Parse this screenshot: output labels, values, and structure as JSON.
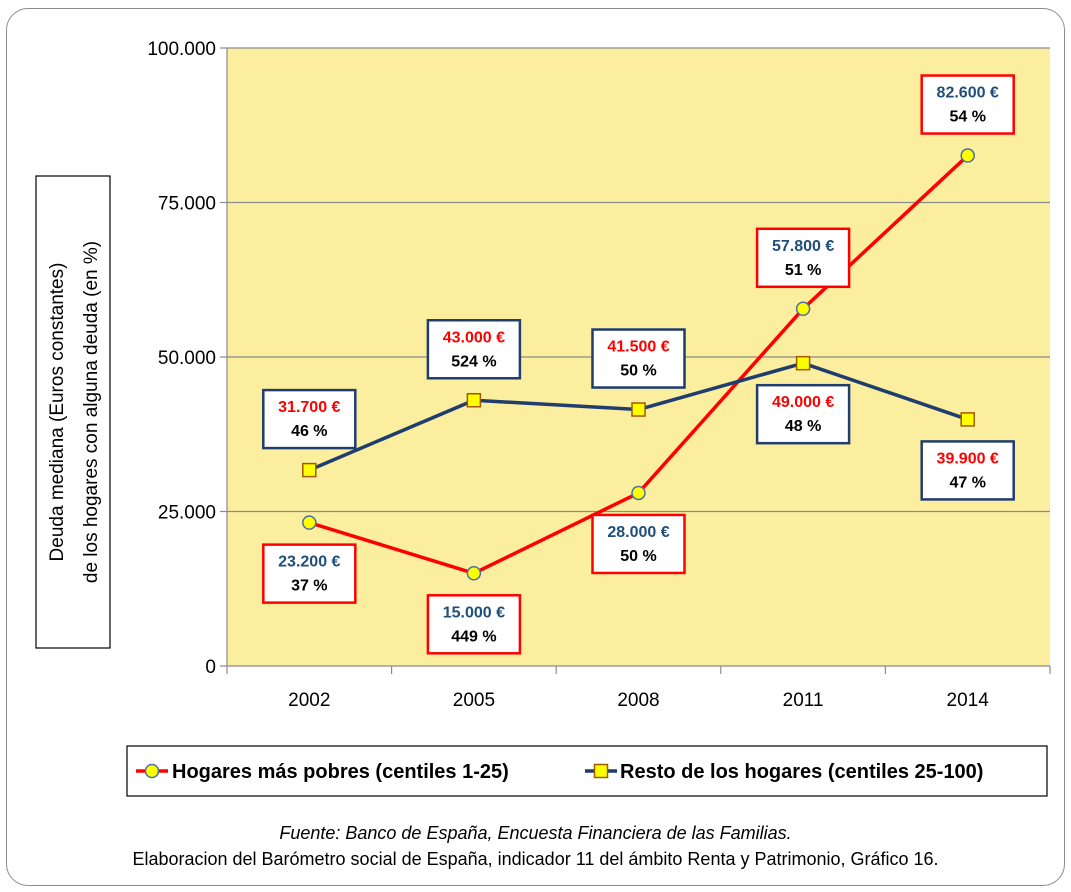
{
  "chart_data": {
    "type": "line",
    "ylabel": [
      "Deuda mediana (Euros constantes)",
      "de los hogares con alguna deuda (en %)"
    ],
    "x": [
      "2002",
      "2005",
      "2008",
      "2011",
      "2014"
    ],
    "ylim": [
      0,
      100000
    ],
    "yticks": [
      0,
      25000,
      50000,
      75000,
      100000
    ],
    "ytick_labels": [
      "0",
      "25.000",
      "50.000",
      "75.000",
      "100.000"
    ],
    "grid": true,
    "plot_background": "#fbee9f",
    "legend_position": "bottom",
    "series": [
      {
        "name": "Hogares más pobres (centiles 1-25)",
        "color": "#ff0000",
        "marker": "circle",
        "values": [
          23200,
          15000,
          28000,
          57800,
          82600
        ],
        "labels": [
          {
            "amount": "23.200 €",
            "pct": "37 %",
            "position": "below"
          },
          {
            "amount": "15.000 €",
            "pct": "449 %",
            "position": "below"
          },
          {
            "amount": "28.000 €",
            "pct": "50 %",
            "position": "below"
          },
          {
            "amount": "57.800 €",
            "pct": "51 %",
            "position": "above"
          },
          {
            "amount": "82.600 €",
            "pct": "54 %",
            "position": "above"
          }
        ],
        "label_amount_color": "#1f4e79",
        "label_border_color": "#ff0000"
      },
      {
        "name": "Resto de los hogares (centiles 25-100)",
        "color": "#1f3d6e",
        "marker": "square",
        "values": [
          31700,
          43000,
          41500,
          49000,
          39900
        ],
        "labels": [
          {
            "amount": "31.700 €",
            "pct": "46 %",
            "position": "above"
          },
          {
            "amount": "43.000 €",
            "pct": "524 %",
            "position": "above"
          },
          {
            "amount": "41.500 €",
            "pct": "50 %",
            "position": "above"
          },
          {
            "amount": "49.000 €",
            "pct": "48 %",
            "position": "below"
          },
          {
            "amount": "39.900 €",
            "pct": "47 %",
            "position": "below"
          }
        ],
        "label_amount_color": "#ff0000",
        "label_border_color": "#1f3d6e"
      }
    ],
    "marker_fill": "#ffff00"
  },
  "captions": {
    "source": "Fuente: Banco de España, Encuesta Financiera de las Familias.",
    "credit": "Elaboracion del Barómetro social de España, indicador  11 del ámbito Renta y Patrimonio, Gráfico 16."
  }
}
